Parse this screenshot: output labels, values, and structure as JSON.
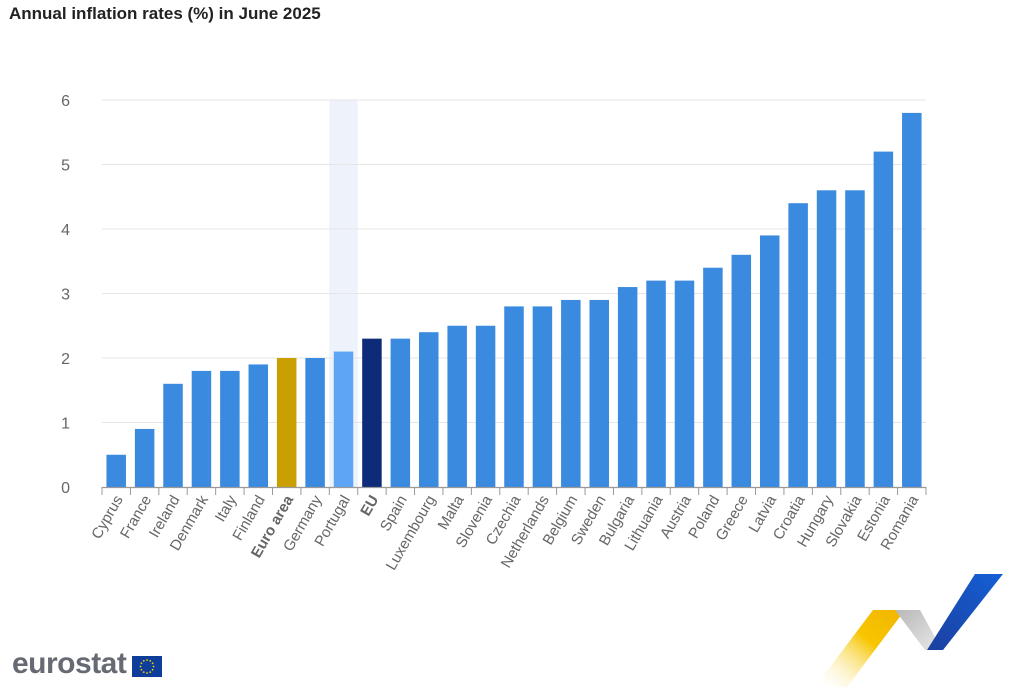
{
  "title": "Annual inflation rates (%) in June 2025",
  "brand": {
    "name": "eurostat",
    "logo_icon": "eu-flag-icon"
  },
  "colors": {
    "default_bar": "#3a8ae0",
    "euro_area_bar": "#c9a000",
    "eu_bar": "#0e2b7a",
    "highlighted_bar": "#5ea6f5",
    "highlight_band": "#eef2fb",
    "grid": "#e6e6e6",
    "axis_text": "#666666"
  },
  "chart_data": {
    "type": "bar",
    "title": "Annual inflation rates (%) in June 2025",
    "xlabel": "",
    "ylabel": "",
    "ylim": [
      0,
      6
    ],
    "yticks": [
      0,
      1,
      2,
      3,
      4,
      5,
      6
    ],
    "grid": true,
    "highlighted_category": "Portugal",
    "categories": [
      "Cyprus",
      "France",
      "Ireland",
      "Denmark",
      "Italy",
      "Finland",
      "Euro area",
      "Germany",
      "Portugal",
      "EU",
      "Spain",
      "Luxembourg",
      "Malta",
      "Slovenia",
      "Czechia",
      "Netherlands",
      "Belgium",
      "Sweden",
      "Bulgaria",
      "Lithuania",
      "Austria",
      "Poland",
      "Greece",
      "Latvia",
      "Croatia",
      "Hungary",
      "Slovakia",
      "Estonia",
      "Romania"
    ],
    "values": [
      0.5,
      0.9,
      1.6,
      1.8,
      1.8,
      1.9,
      2.0,
      2.0,
      2.1,
      2.3,
      2.3,
      2.4,
      2.5,
      2.5,
      2.8,
      2.8,
      2.9,
      2.9,
      3.1,
      3.2,
      3.2,
      3.4,
      3.6,
      3.9,
      4.4,
      4.6,
      4.6,
      5.2,
      5.8
    ],
    "bold_categories": [
      "Euro area",
      "EU"
    ]
  }
}
